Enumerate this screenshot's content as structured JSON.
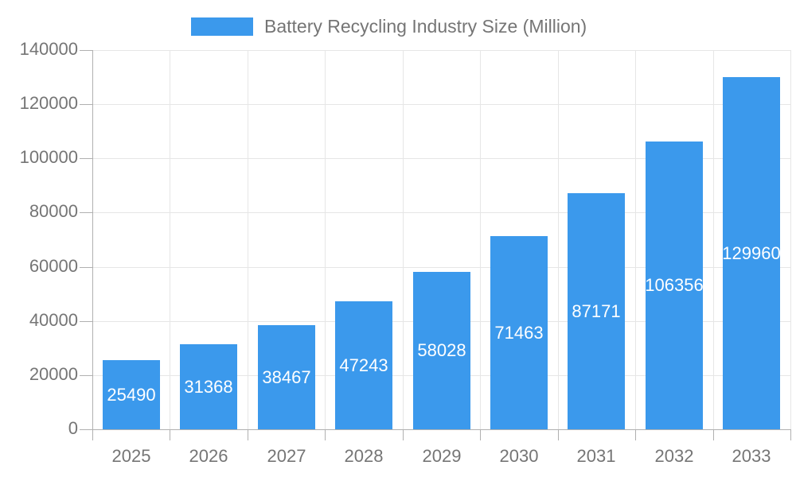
{
  "chart_data": {
    "type": "bar",
    "title": "",
    "legend": {
      "label": "Battery Recycling Industry Size (Million)",
      "position": "top"
    },
    "categories": [
      "2025",
      "2026",
      "2027",
      "2028",
      "2029",
      "2030",
      "2031",
      "2032",
      "2033"
    ],
    "values": [
      25490,
      31368,
      38467,
      47243,
      58028,
      71463,
      87171,
      106356,
      129960
    ],
    "series": [
      {
        "name": "Battery Recycling Industry Size (Million)",
        "values": [
          25490,
          31368,
          38467,
          47243,
          58028,
          71463,
          87171,
          106356,
          129960
        ]
      }
    ],
    "xlabel": "",
    "ylabel": "",
    "ylim": [
      0,
      140000
    ],
    "ytick_step": 20000,
    "ytick_labels": [
      "0",
      "20000",
      "40000",
      "60000",
      "80000",
      "100000",
      "120000",
      "140000"
    ],
    "grid": true,
    "value_labels_shown": true,
    "colors": {
      "bar": "#3B99EC",
      "grid": "#E6E6E6",
      "axis": "#B0B0B0",
      "tick_label": "#757575",
      "legend_text": "#757575",
      "value_label": "#FFFFFF",
      "background": "#FFFFFF"
    }
  }
}
